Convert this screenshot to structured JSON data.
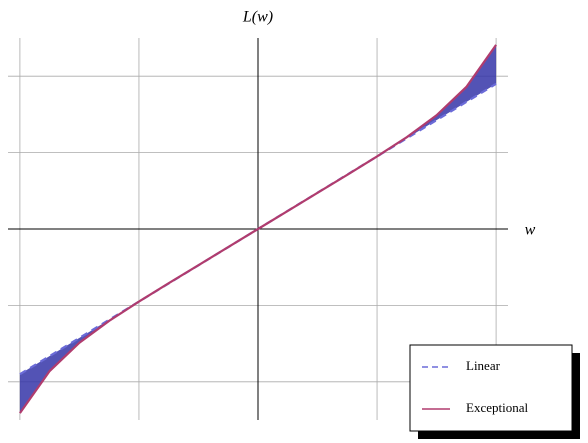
{
  "chart_data": {
    "type": "line",
    "x_label": "w",
    "y_label": "L(w)",
    "x": [
      -2,
      -1.75,
      -1.5,
      -1.25,
      -1,
      -0.75,
      -0.5,
      -0.25,
      0,
      0.25,
      0.5,
      0.75,
      1,
      1.25,
      1.5,
      1.75,
      2
    ],
    "series": [
      {
        "name": "Linear",
        "color": "#6b6bd8",
        "dash": true,
        "values": [
          -1.9,
          -1.6625,
          -1.425,
          -1.1875,
          -0.95,
          -0.7125,
          -0.475,
          -0.2375,
          0,
          0.2375,
          0.475,
          0.7125,
          0.95,
          1.1875,
          1.425,
          1.6625,
          1.9
        ]
      },
      {
        "name": "Exceptional",
        "color": "#b03c6e",
        "dash": false,
        "values": [
          -2.41,
          -1.859,
          -1.488,
          -1.202,
          -0.95,
          -0.71,
          -0.473,
          -0.2365,
          0,
          0.2365,
          0.473,
          0.71,
          0.95,
          1.202,
          1.488,
          1.859,
          2.41
        ]
      }
    ],
    "fill_between": true,
    "fill_color": "#3535a8",
    "xlim": [
      -2.1,
      2.1
    ],
    "ylim": [
      -2.5,
      2.5
    ],
    "xticks": [
      -2,
      -1,
      0,
      1,
      2
    ],
    "yticks": [
      -2,
      -1,
      0,
      1,
      2
    ],
    "tick_labels": false,
    "grid": true,
    "legend": "lower right"
  }
}
